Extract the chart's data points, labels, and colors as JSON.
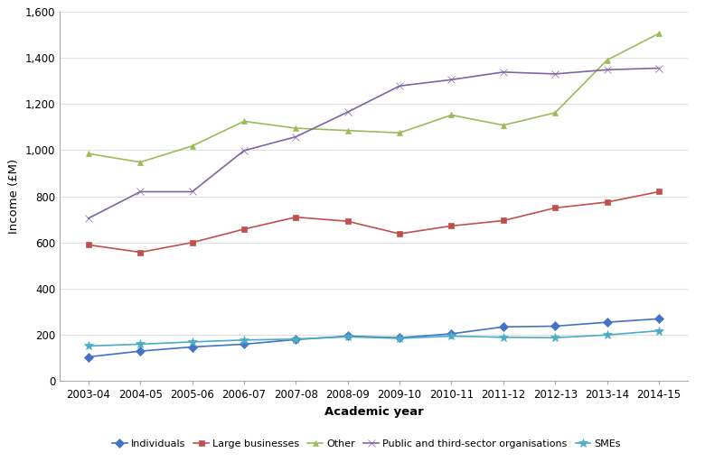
{
  "years": [
    "2003-04",
    "2004-05",
    "2005-06",
    "2006-07",
    "2007-08",
    "2008-09",
    "2009-10",
    "2010-11",
    "2011-12",
    "2012-13",
    "2013-14",
    "2014-15"
  ],
  "series": {
    "Individuals": [
      105,
      130,
      148,
      160,
      180,
      195,
      188,
      205,
      235,
      238,
      255,
      270
    ],
    "Large businesses": [
      590,
      558,
      600,
      658,
      710,
      692,
      638,
      672,
      695,
      750,
      775,
      820
    ],
    "Other": [
      985,
      948,
      1018,
      1125,
      1095,
      1085,
      1075,
      1152,
      1108,
      1162,
      1390,
      1505
    ],
    "Public and third-sector organisations": [
      705,
      820,
      820,
      998,
      1058,
      1165,
      1278,
      1305,
      1338,
      1330,
      1348,
      1355
    ],
    "SMEs": [
      152,
      160,
      170,
      178,
      182,
      192,
      185,
      195,
      190,
      188,
      200,
      218
    ]
  },
  "colors": {
    "Individuals": "#4472C4",
    "Large businesses": "#C0504D",
    "Other": "#9BBB59",
    "Public and third-sector organisations": "#8064A2",
    "SMEs": "#4BACC6"
  },
  "markers": {
    "Individuals": "D",
    "Large businesses": "s",
    "Other": "^",
    "Public and third-sector organisations": "x",
    "SMEs": "*"
  },
  "marker_sizes": {
    "Individuals": 5,
    "Large businesses": 5,
    "Other": 5,
    "Public and third-sector organisations": 6,
    "SMEs": 7
  },
  "xlabel": "Academic year",
  "ylabel": "Income (£M)",
  "ylim": [
    0,
    1600
  ],
  "yticks": [
    0,
    200,
    400,
    600,
    800,
    1000,
    1200,
    1400,
    1600
  ],
  "grid_color": "#e0e0e0",
  "spine_color": "#aaaaaa"
}
